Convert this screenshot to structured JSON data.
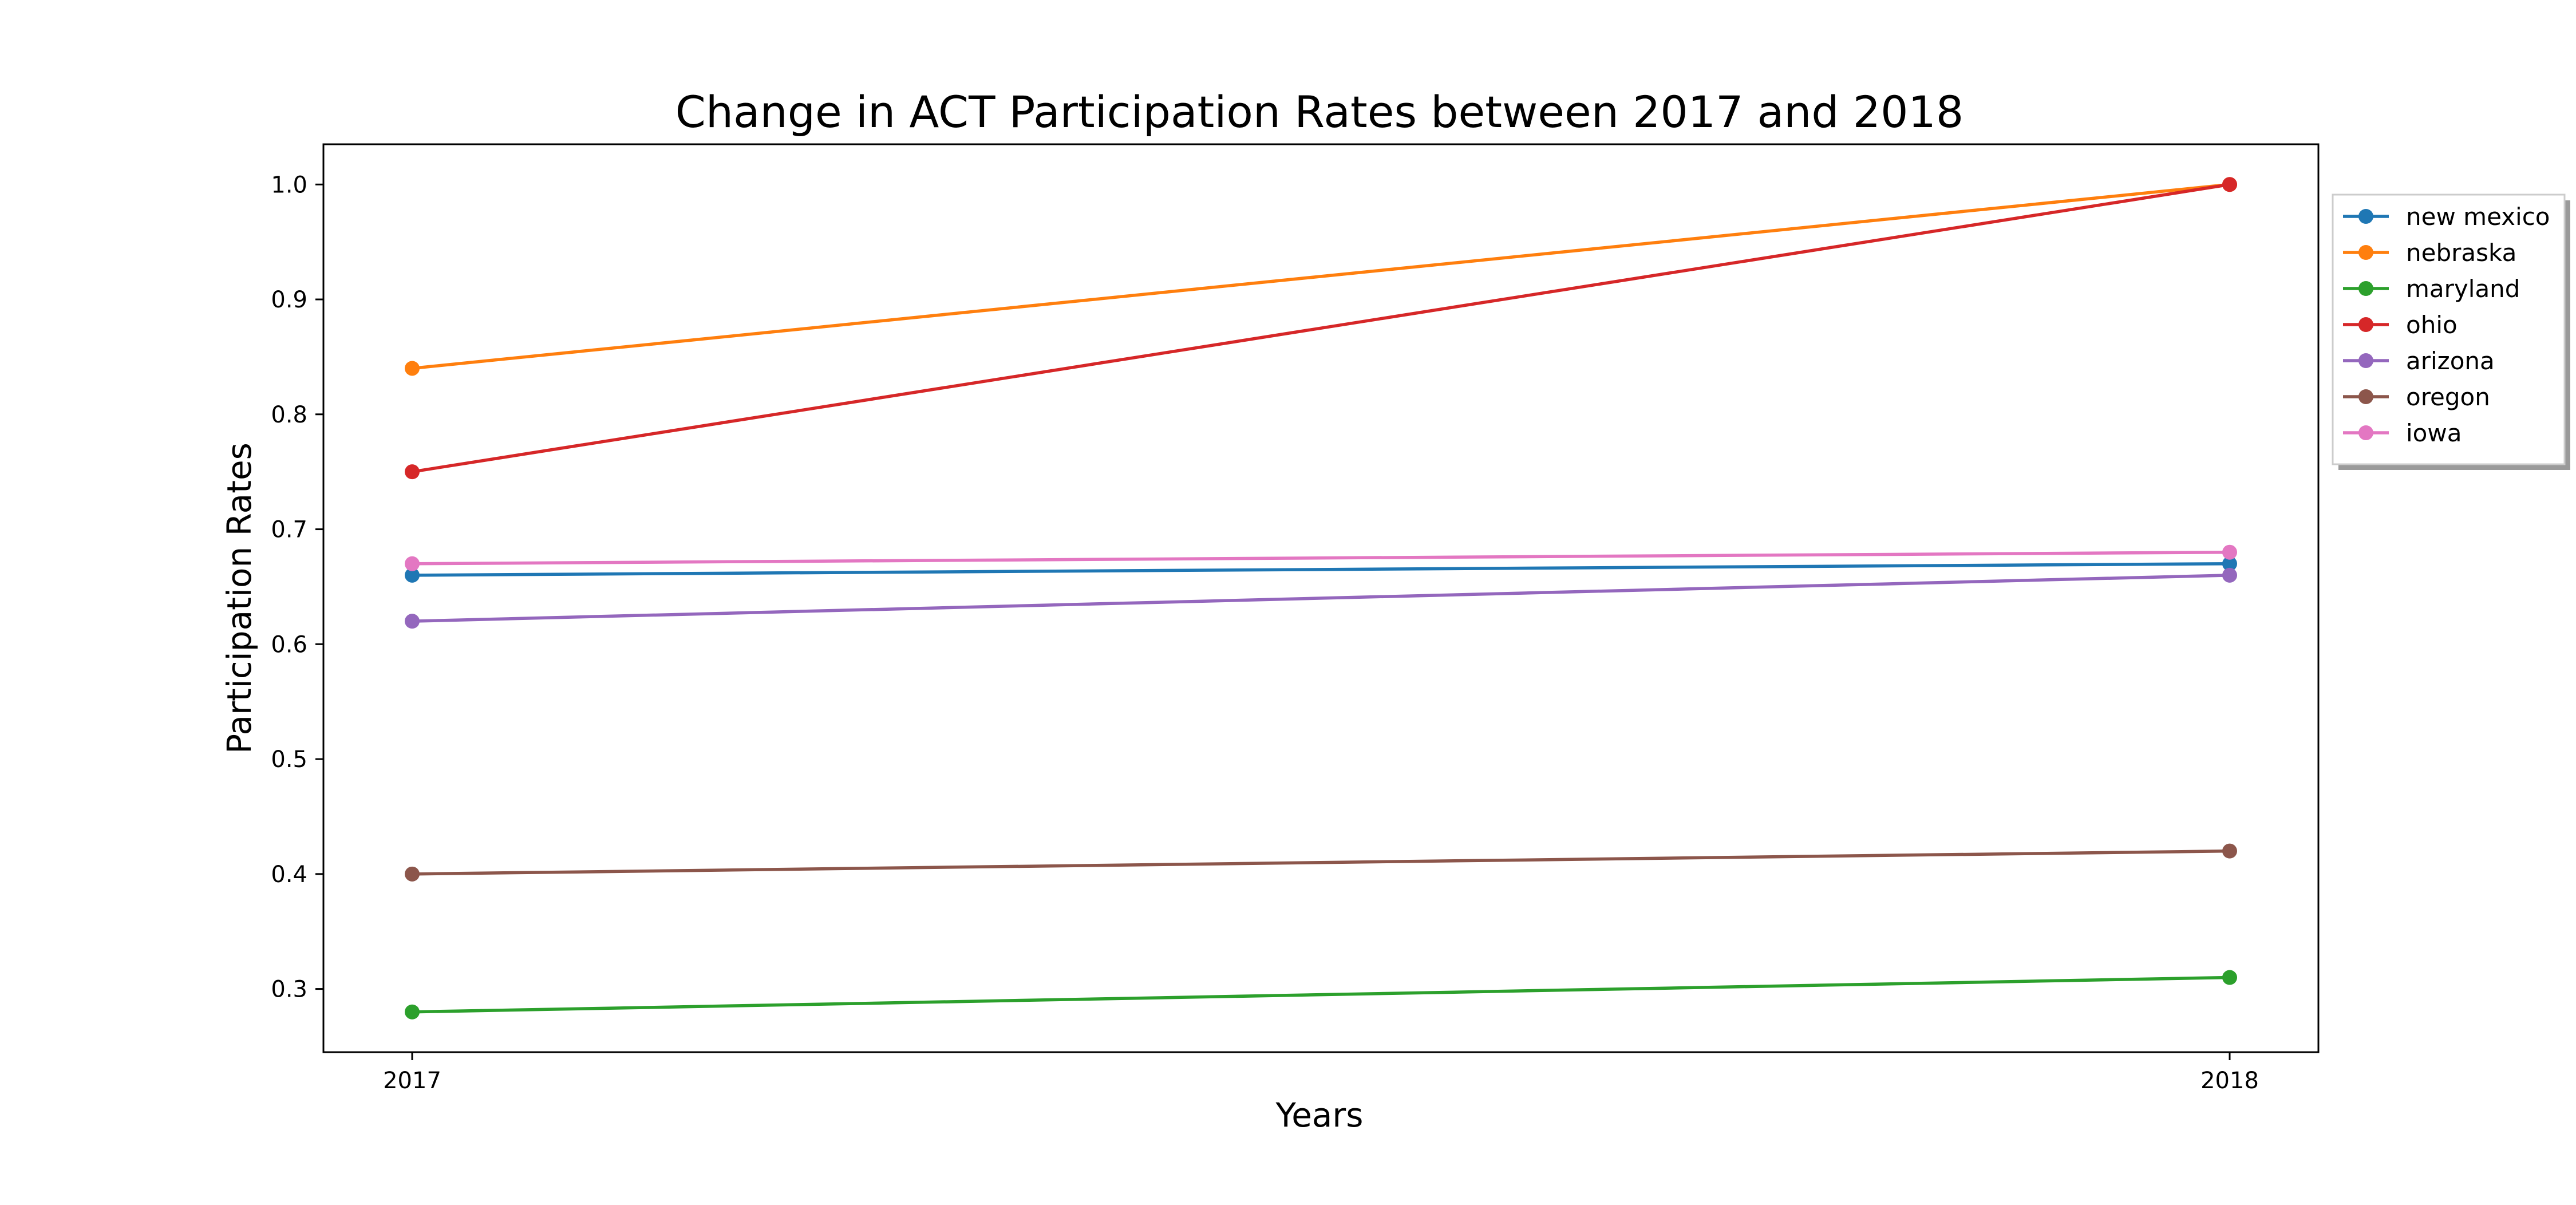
{
  "chart_data": {
    "type": "line",
    "title": "Change in ACT Participation Rates between 2017 and 2018",
    "xlabel": "Years",
    "ylabel": "Participation Rates",
    "x": [
      "2017",
      "2018"
    ],
    "ylim": [
      0.245,
      1.035
    ],
    "yticks": [
      0.3,
      0.4,
      0.5,
      0.6,
      0.7,
      0.8,
      0.9,
      1.0
    ],
    "ytick_labels": [
      "0.3",
      "0.4",
      "0.5",
      "0.6",
      "0.7",
      "0.8",
      "0.9",
      "1.0"
    ],
    "grid": false,
    "legend_position": "outside-right-top",
    "series": [
      {
        "name": "new mexico",
        "values": [
          0.66,
          0.67
        ],
        "color": "#1f77b4"
      },
      {
        "name": "nebraska",
        "values": [
          0.84,
          1.0
        ],
        "color": "#ff7f0e"
      },
      {
        "name": "maryland",
        "values": [
          0.28,
          0.31
        ],
        "color": "#2ca02c"
      },
      {
        "name": "ohio",
        "values": [
          0.75,
          1.0
        ],
        "color": "#d62728"
      },
      {
        "name": "arizona",
        "values": [
          0.62,
          0.66
        ],
        "color": "#9467bd"
      },
      {
        "name": "oregon",
        "values": [
          0.4,
          0.42
        ],
        "color": "#8c564b"
      },
      {
        "name": "iowa",
        "values": [
          0.67,
          0.68
        ],
        "color": "#e377c2"
      }
    ]
  }
}
